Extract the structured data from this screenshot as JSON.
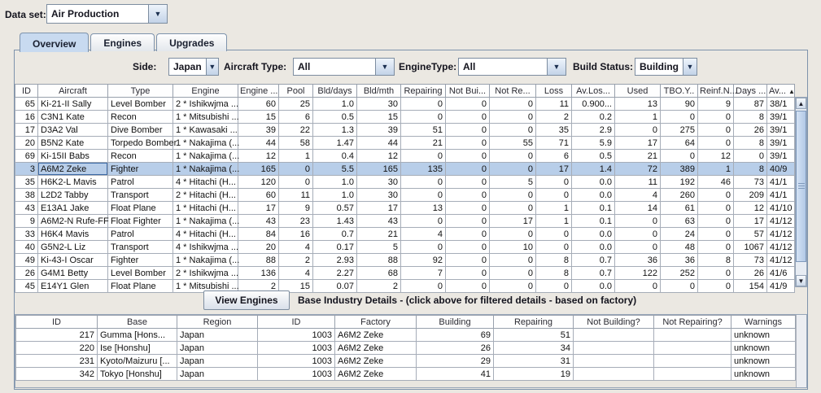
{
  "dataset": {
    "label": "Data set:",
    "value": "Air Production"
  },
  "tabs": [
    {
      "label": "Overview",
      "selected": true
    },
    {
      "label": "Engines",
      "selected": false
    },
    {
      "label": "Upgrades",
      "selected": false
    }
  ],
  "filters": [
    {
      "label": "Side:",
      "value": "Japan"
    },
    {
      "label": "Aircraft Type:",
      "value": "All"
    },
    {
      "label": "EngineType:",
      "value": "All"
    },
    {
      "label": "Build Status:",
      "value": "Building"
    }
  ],
  "icons": {
    "dropdown_arrow": "▼",
    "sort_ascending": "▲",
    "scrollbar_up": "▲",
    "scrollbar_down": "▼"
  },
  "colors": {
    "selection_background": "#b8cee9",
    "tab_selected_background": "#c8daf0",
    "panel_background": "#ebe8e2"
  },
  "main_table": {
    "columns": [
      "ID",
      "Aircraft",
      "Type",
      "Engine",
      "Engine ...",
      "Pool",
      "Bld/days",
      "Bld/mth",
      "Repairing",
      "Not Bui...",
      "Not Re...",
      "Loss",
      "Av.Los...",
      "Used",
      "TBO.Y..",
      "Reinf.N...",
      "Days ...",
      "Av..."
    ],
    "sort_column_index": 17,
    "selected_row_index": 5,
    "rows": [
      [
        "65",
        "Ki-21-II Sally",
        "Level Bomber",
        "2 * Ishikwjma ...",
        "60",
        "25",
        "1.0",
        "30",
        "0",
        "0",
        "0",
        "11",
        "0.900...",
        "13",
        "90",
        "9",
        "87",
        "38/1"
      ],
      [
        "16",
        "C3N1 Kate",
        "Recon",
        "1 * Mitsubishi ...",
        "15",
        "6",
        "0.5",
        "15",
        "0",
        "0",
        "0",
        "2",
        "0.2",
        "1",
        "0",
        "0",
        "8",
        "39/1"
      ],
      [
        "17",
        "D3A2 Val",
        "Dive Bomber",
        "1 * Kawasaki ...",
        "39",
        "22",
        "1.3",
        "39",
        "51",
        "0",
        "0",
        "35",
        "2.9",
        "0",
        "275",
        "0",
        "26",
        "39/1"
      ],
      [
        "20",
        "B5N2 Kate",
        "Torpedo Bomber",
        "1 * Nakajima (...",
        "44",
        "58",
        "1.47",
        "44",
        "21",
        "0",
        "55",
        "71",
        "5.9",
        "17",
        "64",
        "0",
        "8",
        "39/1"
      ],
      [
        "69",
        "Ki-15II Babs",
        "Recon",
        "1 * Nakajima (...",
        "12",
        "1",
        "0.4",
        "12",
        "0",
        "0",
        "0",
        "6",
        "0.5",
        "21",
        "0",
        "12",
        "0",
        "39/1"
      ],
      [
        "3",
        "A6M2 Zeke",
        "Fighter",
        "1 * Nakajima (...",
        "165",
        "0",
        "5.5",
        "165",
        "135",
        "0",
        "0",
        "17",
        "1.4",
        "72",
        "389",
        "1",
        "8",
        "40/9"
      ],
      [
        "35",
        "H6K2-L Mavis",
        "Patrol",
        "4 * Hitachi (H...",
        "120",
        "0",
        "1.0",
        "30",
        "0",
        "0",
        "5",
        "0",
        "0.0",
        "11",
        "192",
        "46",
        "73",
        "41/1"
      ],
      [
        "38",
        "L2D2 Tabby",
        "Transport",
        "2 * Hitachi (H...",
        "60",
        "11",
        "1.0",
        "30",
        "0",
        "0",
        "0",
        "0",
        "0.0",
        "4",
        "260",
        "0",
        "209",
        "41/1"
      ],
      [
        "43",
        "E13A1 Jake",
        "Float Plane",
        "1 * Hitachi (H...",
        "17",
        "9",
        "0.57",
        "17",
        "13",
        "0",
        "0",
        "1",
        "0.1",
        "14",
        "61",
        "0",
        "12",
        "41/10"
      ],
      [
        "9",
        "A6M2-N Rufe-FF",
        "Float Fighter",
        "1 * Nakajima (...",
        "43",
        "23",
        "1.43",
        "43",
        "0",
        "0",
        "17",
        "1",
        "0.1",
        "0",
        "63",
        "0",
        "17",
        "41/12"
      ],
      [
        "33",
        "H6K4 Mavis",
        "Patrol",
        "4 * Hitachi (H...",
        "84",
        "16",
        "0.7",
        "21",
        "4",
        "0",
        "0",
        "0",
        "0.0",
        "0",
        "24",
        "0",
        "57",
        "41/12"
      ],
      [
        "40",
        "G5N2-L Liz",
        "Transport",
        "4 * Ishikwjma ...",
        "20",
        "4",
        "0.17",
        "5",
        "0",
        "0",
        "10",
        "0",
        "0.0",
        "0",
        "48",
        "0",
        "1067",
        "41/12"
      ],
      [
        "49",
        "Ki-43-I Oscar",
        "Fighter",
        "1 * Nakajima (...",
        "88",
        "2",
        "2.93",
        "88",
        "92",
        "0",
        "0",
        "8",
        "0.7",
        "36",
        "36",
        "8",
        "73",
        "41/12"
      ],
      [
        "26",
        "G4M1 Betty",
        "Level Bomber",
        "2 * Ishikwjma ...",
        "136",
        "4",
        "2.27",
        "68",
        "7",
        "0",
        "0",
        "8",
        "0.7",
        "122",
        "252",
        "0",
        "26",
        "41/6"
      ],
      [
        "45",
        "E14Y1 Glen",
        "Float Plane",
        "1 * Mitsubishi ...",
        "2",
        "15",
        "0.07",
        "2",
        "0",
        "0",
        "0",
        "0",
        "0.0",
        "0",
        "0",
        "0",
        "154",
        "41/9"
      ]
    ]
  },
  "footer": {
    "view_engines_button": "View Engines",
    "details_label": "Base Industry Details - (click above for filtered details - based on factory)"
  },
  "base_table": {
    "columns": [
      "ID",
      "Base",
      "Region",
      "ID",
      "Factory",
      "Building",
      "Repairing",
      "Not Building?",
      "Not Repairing?",
      "Warnings"
    ],
    "rows": [
      [
        "217",
        "Gumma [Hons...",
        "Japan",
        "1003",
        "A6M2 Zeke",
        "69",
        "51",
        "",
        "",
        "unknown"
      ],
      [
        "220",
        "Ise [Honshu]",
        "Japan",
        "1003",
        "A6M2 Zeke",
        "26",
        "34",
        "",
        "",
        "unknown"
      ],
      [
        "231",
        "Kyoto/Maizuru [...",
        "Japan",
        "1003",
        "A6M2 Zeke",
        "29",
        "31",
        "",
        "",
        "unknown"
      ],
      [
        "342",
        "Tokyo [Honshu]",
        "Japan",
        "1003",
        "A6M2 Zeke",
        "41",
        "19",
        "",
        "",
        "unknown"
      ]
    ]
  }
}
